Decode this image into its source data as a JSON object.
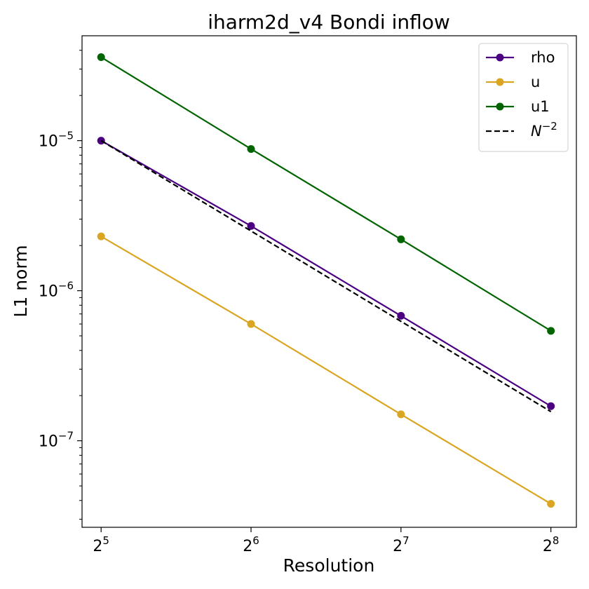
{
  "chart_data": {
    "type": "line",
    "title": "iharm2d_v4 Bondi inflow",
    "xlabel": "Resolution",
    "ylabel": "L1 norm",
    "xscale": "log2",
    "yscale": "log10",
    "xlim": [
      29.3,
      288
    ],
    "ylim": [
      2.65e-08,
      5e-05
    ],
    "x": [
      32,
      64,
      128,
      256
    ],
    "x_ticks": [
      {
        "value": 32,
        "base": "2",
        "exp": "5"
      },
      {
        "value": 64,
        "base": "2",
        "exp": "6"
      },
      {
        "value": 128,
        "base": "2",
        "exp": "7"
      },
      {
        "value": 256,
        "base": "2",
        "exp": "8"
      }
    ],
    "y_ticks": [
      {
        "value": 1e-07,
        "base": "10",
        "exp": "−7"
      },
      {
        "value": 1e-06,
        "base": "10",
        "exp": "−6"
      },
      {
        "value": 1e-05,
        "base": "10",
        "exp": "−5"
      }
    ],
    "grid": false,
    "legend_position": "top-right",
    "series": [
      {
        "name": "rho",
        "color": "#4b0082",
        "marker": "circle",
        "dash": "solid",
        "values": [
          1e-05,
          2.7e-06,
          6.8e-07,
          1.7e-07
        ]
      },
      {
        "name": "u",
        "color": "#daa520",
        "marker": "circle",
        "dash": "solid",
        "values": [
          2.3e-06,
          6e-07,
          1.5e-07,
          3.8e-08
        ]
      },
      {
        "name": "u1",
        "color": "#006400",
        "marker": "circle",
        "dash": "solid",
        "values": [
          3.6e-05,
          8.8e-06,
          2.2e-06,
          5.4e-07
        ]
      },
      {
        "name": "N",
        "name_exp": "−2",
        "color": "#000000",
        "marker": "none",
        "dash": "dashed",
        "values": [
          1e-05,
          2.5e-06,
          6.25e-07,
          1.5625e-07
        ]
      }
    ]
  }
}
